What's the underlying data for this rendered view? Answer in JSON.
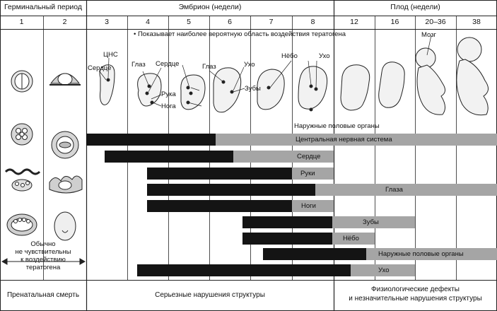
{
  "header": {
    "germinal": "Герминальный период",
    "embryo": "Эмбрион (недели)",
    "fetus": "Плод (недели)"
  },
  "weeks": [
    "1",
    "2",
    "3",
    "4",
    "5",
    "6",
    "7",
    "8",
    "12",
    "16",
    "20–36",
    "38"
  ],
  "legend_note": "• Показывает наиболее вероятную область воздействия тератогена",
  "embryo_labels": {
    "cns": "ЦНС",
    "heart_w3": "Сердце",
    "eye_w4": "Глаз",
    "heart_w4": "Сердце",
    "arm": "Рука",
    "leg": "Нога",
    "eye_w5": "Глаз",
    "ear_w6": "Ухо",
    "teeth": "Зубы",
    "palate": "Нёбо",
    "ear_w8": "Ухо",
    "brain": "Мозг",
    "genitals": "Наружные половые органы"
  },
  "germinal_note": [
    "Обычно",
    "не чувствительны",
    "к воздействию",
    "тератогена"
  ],
  "bars": [
    {
      "label": "Центральная нервная система"
    },
    {
      "label": "Сердце"
    },
    {
      "label": "Руки"
    },
    {
      "label": "Глаза"
    },
    {
      "label": "Ноги"
    },
    {
      "label": "Зубы"
    },
    {
      "label": "Нёбо"
    },
    {
      "label": "Наружные половые органы"
    },
    {
      "label": "Ухо"
    }
  ],
  "footer": {
    "prenatal_death": "Пренатальная смерть",
    "major": "Серьезные нарушения структуры",
    "minor_line1": "Физиологические дефекты",
    "minor_line2": "и незначительные нарушения структуры"
  },
  "colors": {
    "sensitive": "#141414",
    "less_sensitive": "#a5a5a5",
    "rule": "#222222"
  }
}
